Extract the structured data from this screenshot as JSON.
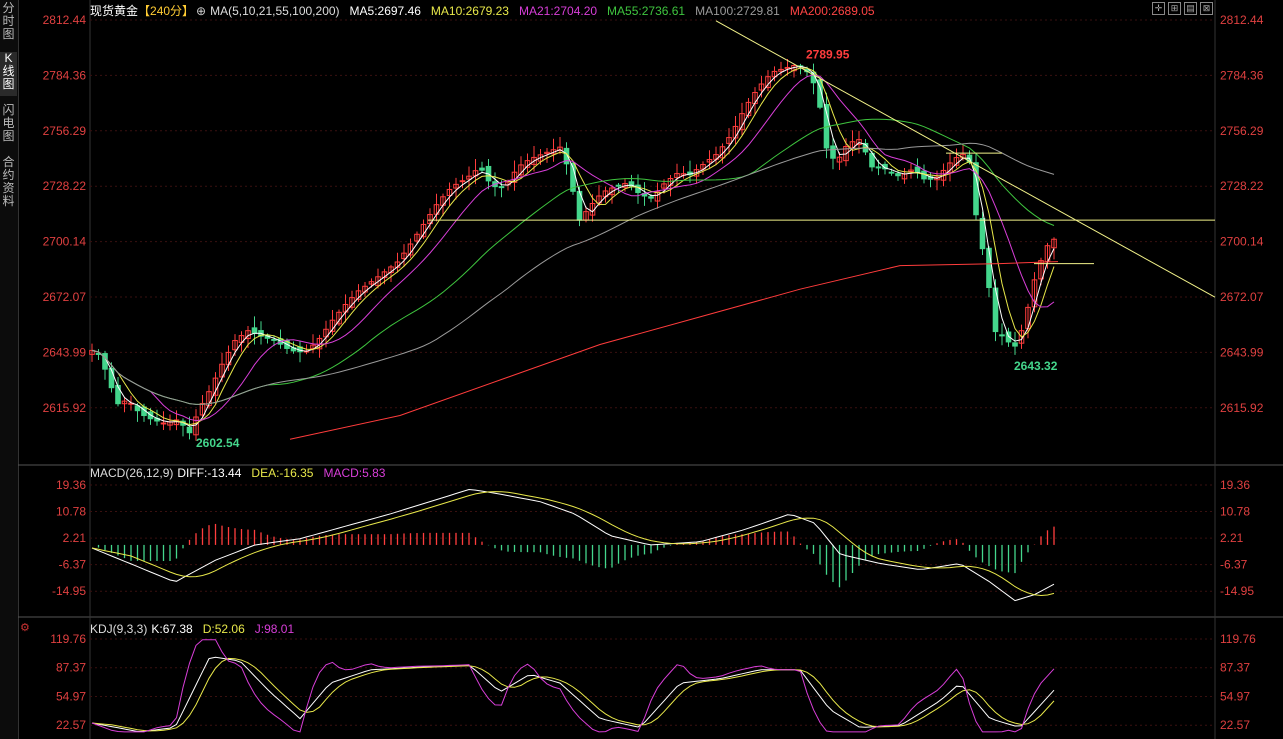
{
  "sidebar": {
    "tabs": [
      {
        "label": "分时图",
        "active": false
      },
      {
        "label": "K线图",
        "active": true
      },
      {
        "label": "闪电图",
        "active": false
      },
      {
        "label": "合约资料",
        "active": false
      }
    ]
  },
  "header": {
    "symbol": "现货黄金",
    "period": "【240分】",
    "ma_params": "MA(5,10,21,55,100,200)",
    "ma5": "MA5:2697.46",
    "ma10": "MA10:2679.23",
    "ma21": "MA21:2704.20",
    "ma55": "MA55:2736.61",
    "ma100": "MA100:2729.81",
    "ma200": "MA200:2689.05"
  },
  "macd_header": {
    "params": "MACD(26,12,9)",
    "diff": "DIFF:-13.44",
    "dea": "DEA:-16.35",
    "macd": "MACD:5.83"
  },
  "kdj_header": {
    "params": "KDJ(9,3,3)",
    "k": "K:67.38",
    "d": "D:52.06",
    "j": "J:98.01"
  },
  "price_axis": [
    "2812.44",
    "2784.36",
    "2756.29",
    "2728.22",
    "2700.14",
    "2672.07",
    "2643.99",
    "2615.92"
  ],
  "macd_axis": [
    "19.36",
    "10.78",
    "2.21",
    "-6.37",
    "-14.95"
  ],
  "kdj_axis": [
    "119.76",
    "87.37",
    "54.97",
    "22.57"
  ],
  "annotations": {
    "high": "2789.95",
    "low_recent": "2643.32",
    "low_early": "2602.54"
  },
  "colors": {
    "up": "#ff3d3d",
    "down": "#44d68c",
    "ma5": "#ffffff",
    "ma10": "#e8e84a",
    "ma21": "#d83ed8",
    "ma55": "#3fc53f",
    "ma100": "#9a9a9a",
    "ma200": "#ff3c3c",
    "grid": "#3a1010"
  },
  "chart_data": {
    "type": "candlestick",
    "series": [
      {
        "name": "MA5",
        "value": 2697.46
      },
      {
        "name": "MA10",
        "value": 2679.23
      },
      {
        "name": "MA21",
        "value": 2704.2
      },
      {
        "name": "MA55",
        "value": 2736.61
      },
      {
        "name": "MA100",
        "value": 2729.81
      },
      {
        "name": "MA200",
        "value": 2689.05
      }
    ],
    "ylim": [
      2600,
      2815
    ],
    "high_label": 2789.95,
    "low_label": 2643.32
  }
}
